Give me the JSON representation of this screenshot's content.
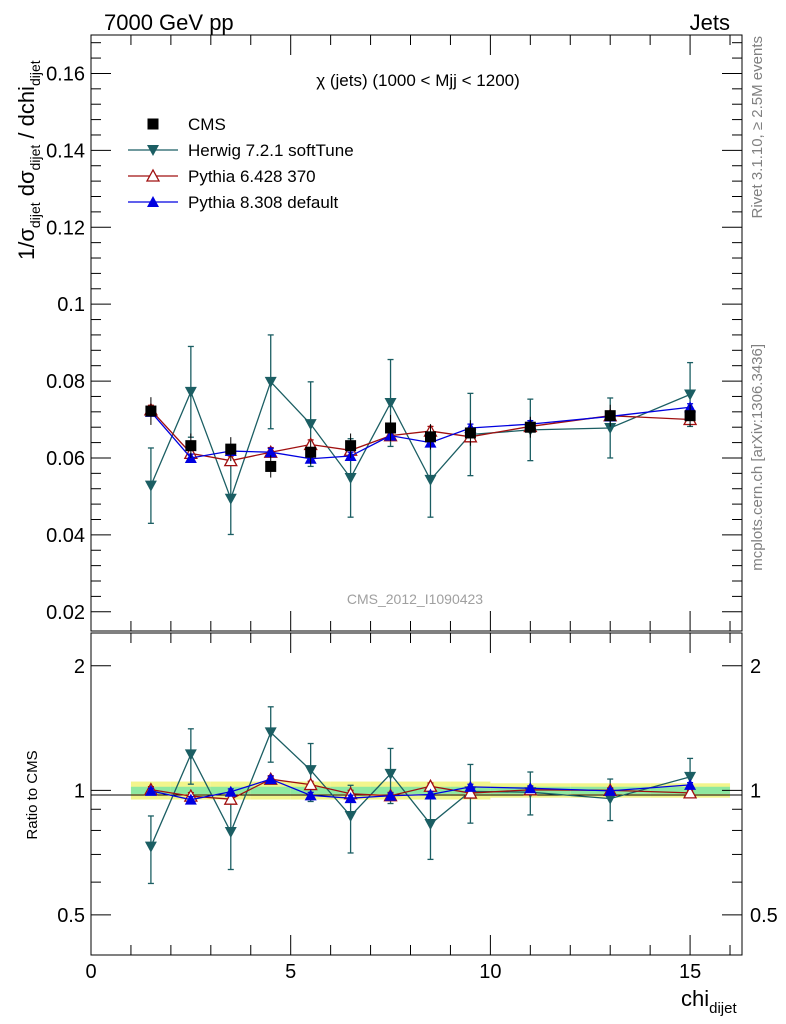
{
  "header": {
    "left": "7000 GeV pp",
    "right": "Jets"
  },
  "side_labels": {
    "rivet": "Rivet 3.1.10, ≥ 2.5M events",
    "mcplots": "mcplots.cern.ch [arXiv:1306.3436]"
  },
  "watermark": "CMS_2012_I1090423",
  "chart_data": {
    "type": "line",
    "title": "χ (jets) (1000 < Mjj < 1200)",
    "xlabel": "chi",
    "xlabel_sub": "dijet",
    "ylabel": "1/σ_dijet dσ_dijet / dchi_dijet",
    "ratio_ylabel": "Ratio to CMS",
    "xlim": [
      0,
      16.3
    ],
    "ylim": [
      0.015,
      0.17
    ],
    "ratio_ylim": [
      0.4,
      2.4
    ],
    "x_ticks": [
      0,
      5,
      10,
      15
    ],
    "y_ticks": [
      0.02,
      0.04,
      0.06,
      0.08,
      0.1,
      0.12,
      0.14,
      0.16
    ],
    "y_tick_labels": [
      "0.02",
      "0.04",
      "0.06",
      "0.08",
      "0.1",
      "0.12",
      "0.14",
      "0.16"
    ],
    "ratio_ticks": [
      0.5,
      1,
      2
    ],
    "ratio_tick_labels": [
      "0.5",
      "1",
      "2"
    ],
    "legend_position": "top-left",
    "x": [
      1.5,
      2.5,
      3.5,
      4.5,
      5.5,
      6.5,
      7.5,
      8.5,
      9.5,
      11,
      13,
      15
    ],
    "bins": [
      [
        1,
        2
      ],
      [
        2,
        3
      ],
      [
        3,
        4
      ],
      [
        4,
        5
      ],
      [
        5,
        6
      ],
      [
        6,
        7
      ],
      [
        7,
        8
      ],
      [
        8,
        9
      ],
      [
        9,
        10
      ],
      [
        10,
        12
      ],
      [
        12,
        14
      ],
      [
        14,
        16
      ]
    ],
    "series": [
      {
        "name": "CMS",
        "color": "#000000",
        "marker": "square",
        "values": [
          0.0722,
          0.0632,
          0.0623,
          0.0578,
          0.0615,
          0.0632,
          0.0678,
          0.0655,
          0.0665,
          0.068,
          0.071,
          0.071
        ],
        "rel_err_stat": [
          0.02,
          0.02,
          0.02,
          0.02,
          0.02,
          0.02,
          0.02,
          0.02,
          0.02,
          0.02,
          0.02,
          0.02
        ],
        "rel_err_total": [
          0.05,
          0.05,
          0.05,
          0.05,
          0.05,
          0.05,
          0.05,
          0.05,
          0.05,
          0.04,
          0.04,
          0.04
        ]
      },
      {
        "name": "Herwig 7.2.1 softTune",
        "color": "#1b5e63",
        "marker": "triangle-down",
        "values": [
          0.0528,
          0.0772,
          0.0494,
          0.0798,
          0.0688,
          0.0548,
          0.0743,
          0.0543,
          0.0661,
          0.0673,
          0.0678,
          0.0765
        ],
        "errors": [
          0.0098,
          0.0118,
          0.0093,
          0.0122,
          0.011,
          0.0102,
          0.0113,
          0.0097,
          0.0107,
          0.008,
          0.0078,
          0.0083
        ]
      },
      {
        "name": "Pythia 6.428 370",
        "color": "#a01010",
        "marker": "triangle-up-open",
        "values": [
          0.0725,
          0.0612,
          0.0593,
          0.0615,
          0.0635,
          0.062,
          0.0658,
          0.067,
          0.0655,
          0.0682,
          0.071,
          0.07
        ],
        "errors": [
          0.0012,
          0.0012,
          0.0012,
          0.0012,
          0.0012,
          0.0012,
          0.0012,
          0.0012,
          0.0012,
          0.001,
          0.001,
          0.001
        ]
      },
      {
        "name": "Pythia 8.308 default",
        "color": "#0000e0",
        "marker": "triangle-up",
        "values": [
          0.072,
          0.06,
          0.0618,
          0.0615,
          0.0598,
          0.0605,
          0.0658,
          0.064,
          0.0678,
          0.0688,
          0.0708,
          0.0732
        ],
        "errors": [
          0.001,
          0.001,
          0.001,
          0.001,
          0.001,
          0.001,
          0.001,
          0.001,
          0.001,
          0.0009,
          0.0009,
          0.0009
        ]
      }
    ]
  }
}
